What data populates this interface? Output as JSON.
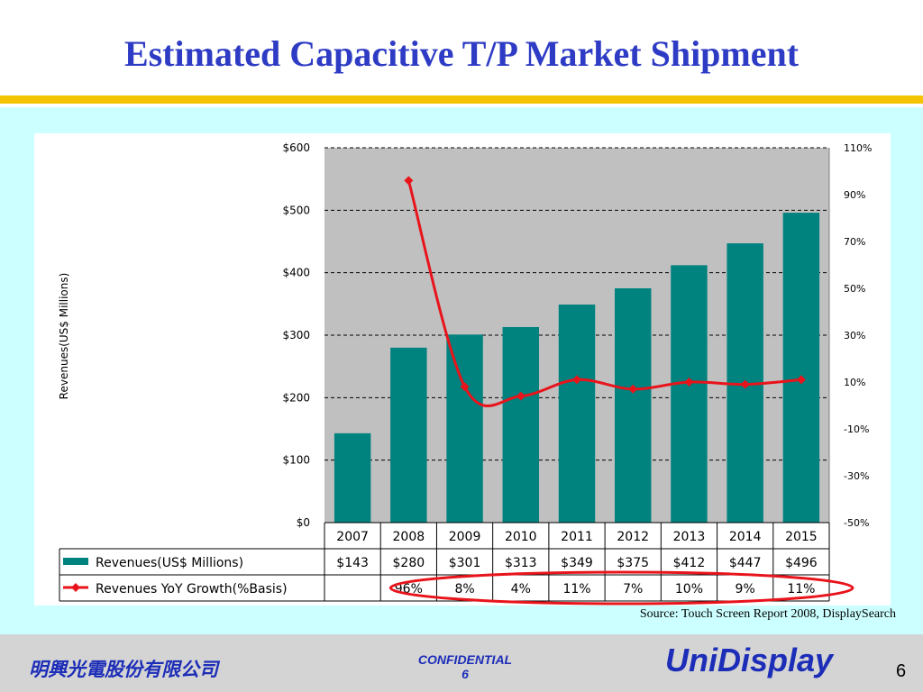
{
  "slide": {
    "title": "Estimated Capacitive T/P Market Shipment",
    "source": "Source: Touch Screen Report 2008, DisplaySearch",
    "footer": {
      "company": "明興光電股份有限公司",
      "confidential": "CONFIDENTIAL",
      "confidential_page": "6",
      "brand": "UniDisplay",
      "page_number": "6"
    }
  },
  "colors": {
    "title": "#2e3bc4",
    "bar": "#00827f",
    "line": "#e8141b",
    "plot_bg": "#c0c0c0",
    "panel_bg": "#ccffff",
    "gold": "#f5c400",
    "ellipse": "#e8141b"
  },
  "chart_data": {
    "type": "bar",
    "categories": [
      "2007",
      "2008",
      "2009",
      "2010",
      "2011",
      "2012",
      "2013",
      "2014",
      "2015"
    ],
    "ylabel": "Revenues(US$ Millions)",
    "ylim": [
      0,
      600
    ],
    "y_ticks": [
      "$0",
      "$100",
      "$200",
      "$300",
      "$400",
      "$500",
      "$600"
    ],
    "y2lim": [
      -50,
      110
    ],
    "y2_ticks": [
      "-50%",
      "-30%",
      "-10%",
      "10%",
      "30%",
      "50%",
      "70%",
      "90%",
      "110%"
    ],
    "grid": true,
    "series": [
      {
        "name": "Revenues(US$ Millions)",
        "type": "bar",
        "values": [
          143,
          280,
          301,
          313,
          349,
          375,
          412,
          447,
          496
        ],
        "labels": [
          "$143",
          "$280",
          "$301",
          "$313",
          "$349",
          "$375",
          "$412",
          "$447",
          "$496"
        ]
      },
      {
        "name": "Revenues YoY Growth(%Basis)",
        "type": "line",
        "axis": "secondary",
        "values": [
          null,
          96,
          8,
          4,
          11,
          7,
          10,
          9,
          11
        ],
        "labels": [
          "",
          "96%",
          "8%",
          "4%",
          "11%",
          "7%",
          "10%",
          "9%",
          "11%"
        ]
      }
    ]
  }
}
